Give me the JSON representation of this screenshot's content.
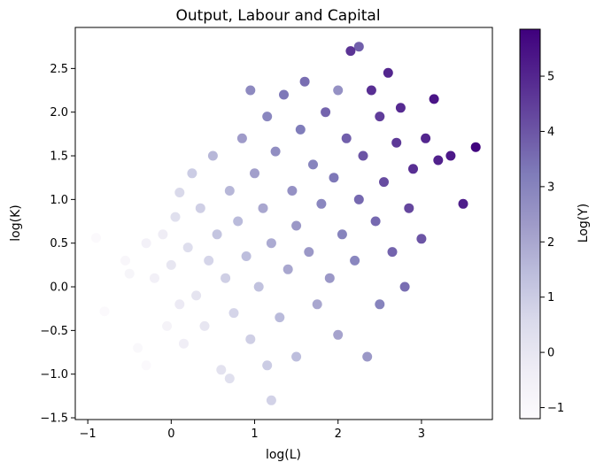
{
  "chart_data": {
    "type": "scatter",
    "title": "Output, Labour and Capital",
    "xlabel": "log(L)",
    "ylabel": "log(K)",
    "colorbar_label": "Log(Y)",
    "xlim": [
      -1.15,
      3.85
    ],
    "ylim": [
      -1.52,
      2.97
    ],
    "xticks": [
      -1,
      0,
      1,
      2,
      3
    ],
    "yticks": [
      -1.5,
      -1.0,
      -0.5,
      0.0,
      0.5,
      1.0,
      1.5,
      2.0,
      2.5
    ],
    "colorbar_range": [
      -1.2,
      5.85
    ],
    "colorbar_ticks": [
      -1,
      0,
      1,
      2,
      3,
      4,
      5
    ],
    "colormap": "Purples",
    "colormap_stops": [
      "#fcfbfd",
      "#efedf5",
      "#dadaeb",
      "#bcbddc",
      "#9e9ac8",
      "#807dba",
      "#6a51a3",
      "#54278f",
      "#3f007d"
    ],
    "grid": false,
    "points": [
      {
        "x": -0.9,
        "y": 0.56,
        "c": -1.1
      },
      {
        "x": -0.8,
        "y": -0.28,
        "c": -1.1
      },
      {
        "x": -0.55,
        "y": 0.3,
        "c": -0.9
      },
      {
        "x": -0.5,
        "y": 0.15,
        "c": -0.8
      },
      {
        "x": -0.4,
        "y": -0.7,
        "c": -1.0
      },
      {
        "x": -0.3,
        "y": -0.9,
        "c": -1.1
      },
      {
        "x": -0.3,
        "y": 0.5,
        "c": -0.6
      },
      {
        "x": -0.2,
        "y": 0.1,
        "c": -0.5
      },
      {
        "x": -0.1,
        "y": 0.6,
        "c": -0.3
      },
      {
        "x": -0.05,
        "y": -0.45,
        "c": -0.7
      },
      {
        "x": 0.0,
        "y": 0.25,
        "c": 0.0
      },
      {
        "x": 0.05,
        "y": 0.8,
        "c": 0.3
      },
      {
        "x": 0.1,
        "y": -0.2,
        "c": -0.2
      },
      {
        "x": 0.1,
        "y": 1.08,
        "c": 0.6
      },
      {
        "x": 0.15,
        "y": -0.65,
        "c": -0.4
      },
      {
        "x": 0.2,
        "y": 0.45,
        "c": 0.4
      },
      {
        "x": 0.25,
        "y": 1.3,
        "c": 1.0
      },
      {
        "x": 0.3,
        "y": -0.1,
        "c": 0.1
      },
      {
        "x": 0.35,
        "y": 0.9,
        "c": 0.9
      },
      {
        "x": 0.4,
        "y": -0.45,
        "c": 0.0
      },
      {
        "x": 0.45,
        "y": 0.3,
        "c": 0.7
      },
      {
        "x": 0.5,
        "y": 1.5,
        "c": 1.6
      },
      {
        "x": 0.55,
        "y": 0.6,
        "c": 1.2
      },
      {
        "x": 0.6,
        "y": -0.95,
        "c": 0.2
      },
      {
        "x": 0.65,
        "y": 0.1,
        "c": 0.9
      },
      {
        "x": 0.7,
        "y": 1.1,
        "c": 1.6
      },
      {
        "x": 0.7,
        "y": -1.05,
        "c": 0.3
      },
      {
        "x": 0.75,
        "y": -0.3,
        "c": 0.7
      },
      {
        "x": 0.8,
        "y": 0.75,
        "c": 1.5
      },
      {
        "x": 0.85,
        "y": 1.7,
        "c": 2.3
      },
      {
        "x": 0.9,
        "y": 0.35,
        "c": 1.4
      },
      {
        "x": 0.95,
        "y": -0.6,
        "c": 0.9
      },
      {
        "x": 0.95,
        "y": 2.25,
        "c": 2.8
      },
      {
        "x": 1.0,
        "y": 1.3,
        "c": 2.2
      },
      {
        "x": 1.05,
        "y": 0.0,
        "c": 1.3
      },
      {
        "x": 1.1,
        "y": 0.9,
        "c": 2.0
      },
      {
        "x": 1.15,
        "y": -0.9,
        "c": 1.0
      },
      {
        "x": 1.15,
        "y": 1.95,
        "c": 2.9
      },
      {
        "x": 1.2,
        "y": 0.5,
        "c": 1.9
      },
      {
        "x": 1.2,
        "y": -1.3,
        "c": 0.8
      },
      {
        "x": 1.25,
        "y": 1.55,
        "c": 2.7
      },
      {
        "x": 1.3,
        "y": -0.35,
        "c": 1.5
      },
      {
        "x": 1.35,
        "y": 2.2,
        "c": 3.3
      },
      {
        "x": 1.4,
        "y": 0.2,
        "c": 2.0
      },
      {
        "x": 1.45,
        "y": 1.1,
        "c": 2.6
      },
      {
        "x": 1.5,
        "y": 0.7,
        "c": 2.4
      },
      {
        "x": 1.5,
        "y": -0.8,
        "c": 1.4
      },
      {
        "x": 1.55,
        "y": 1.8,
        "c": 3.2
      },
      {
        "x": 1.6,
        "y": 2.35,
        "c": 3.5
      },
      {
        "x": 1.65,
        "y": 0.4,
        "c": 2.4
      },
      {
        "x": 1.7,
        "y": 1.4,
        "c": 3.0
      },
      {
        "x": 1.75,
        "y": -0.2,
        "c": 2.0
      },
      {
        "x": 1.8,
        "y": 0.95,
        "c": 2.9
      },
      {
        "x": 1.85,
        "y": 2.0,
        "c": 3.7
      },
      {
        "x": 1.9,
        "y": 0.1,
        "c": 2.4
      },
      {
        "x": 1.95,
        "y": 1.25,
        "c": 3.3
      },
      {
        "x": 2.0,
        "y": 2.25,
        "c": 2.6
      },
      {
        "x": 2.0,
        "y": -0.55,
        "c": 2.1
      },
      {
        "x": 2.05,
        "y": 0.6,
        "c": 3.0
      },
      {
        "x": 2.1,
        "y": 1.7,
        "c": 3.8
      },
      {
        "x": 2.15,
        "y": 2.7,
        "c": 4.7
      },
      {
        "x": 2.2,
        "y": 0.3,
        "c": 2.9
      },
      {
        "x": 2.25,
        "y": 1.0,
        "c": 3.6
      },
      {
        "x": 2.25,
        "y": 2.75,
        "c": 3.8
      },
      {
        "x": 2.3,
        "y": 1.5,
        "c": 4.0
      },
      {
        "x": 2.35,
        "y": -0.8,
        "c": 2.4
      },
      {
        "x": 2.4,
        "y": 2.25,
        "c": 4.8
      },
      {
        "x": 2.45,
        "y": 0.75,
        "c": 3.6
      },
      {
        "x": 2.5,
        "y": 1.95,
        "c": 4.5
      },
      {
        "x": 2.5,
        "y": -0.2,
        "c": 3.0
      },
      {
        "x": 2.55,
        "y": 1.2,
        "c": 4.2
      },
      {
        "x": 2.6,
        "y": 2.45,
        "c": 5.0
      },
      {
        "x": 2.65,
        "y": 0.4,
        "c": 3.7
      },
      {
        "x": 2.7,
        "y": 1.65,
        "c": 4.6
      },
      {
        "x": 2.75,
        "y": 2.05,
        "c": 4.9
      },
      {
        "x": 2.8,
        "y": 0.0,
        "c": 3.5
      },
      {
        "x": 2.85,
        "y": 0.9,
        "c": 4.3
      },
      {
        "x": 2.9,
        "y": 1.35,
        "c": 4.8
      },
      {
        "x": 3.0,
        "y": 0.55,
        "c": 4.0
      },
      {
        "x": 3.05,
        "y": 1.7,
        "c": 5.0
      },
      {
        "x": 3.15,
        "y": 2.15,
        "c": 5.4
      },
      {
        "x": 3.2,
        "y": 1.45,
        "c": 5.1
      },
      {
        "x": 3.35,
        "y": 1.5,
        "c": 5.3
      },
      {
        "x": 3.5,
        "y": 0.95,
        "c": 5.2
      },
      {
        "x": 3.65,
        "y": 1.6,
        "c": 5.8
      }
    ]
  }
}
